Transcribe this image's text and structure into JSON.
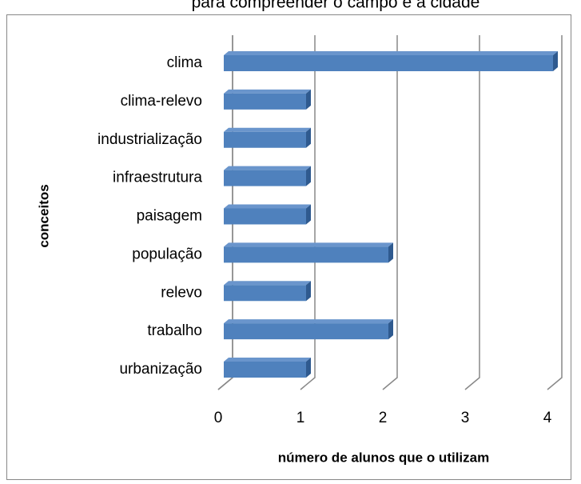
{
  "chart_data": {
    "type": "bar",
    "orientation": "horizontal",
    "title": "para compreender o campo e a cidade",
    "categories": [
      "clima",
      "clima-relevo",
      "industrialização",
      "infraestrutura",
      "paisagem",
      "população",
      "relevo",
      "trabalho",
      "urbanização"
    ],
    "values": [
      4,
      1,
      1,
      1,
      1,
      2,
      1,
      2,
      1
    ],
    "color": "#4f81bd",
    "x_label": "número de alunos que o utilizam",
    "y_label": "conceitos",
    "xlim": [
      0,
      4
    ],
    "xticks": [
      0,
      1,
      2,
      3,
      4
    ],
    "grid": true
  }
}
